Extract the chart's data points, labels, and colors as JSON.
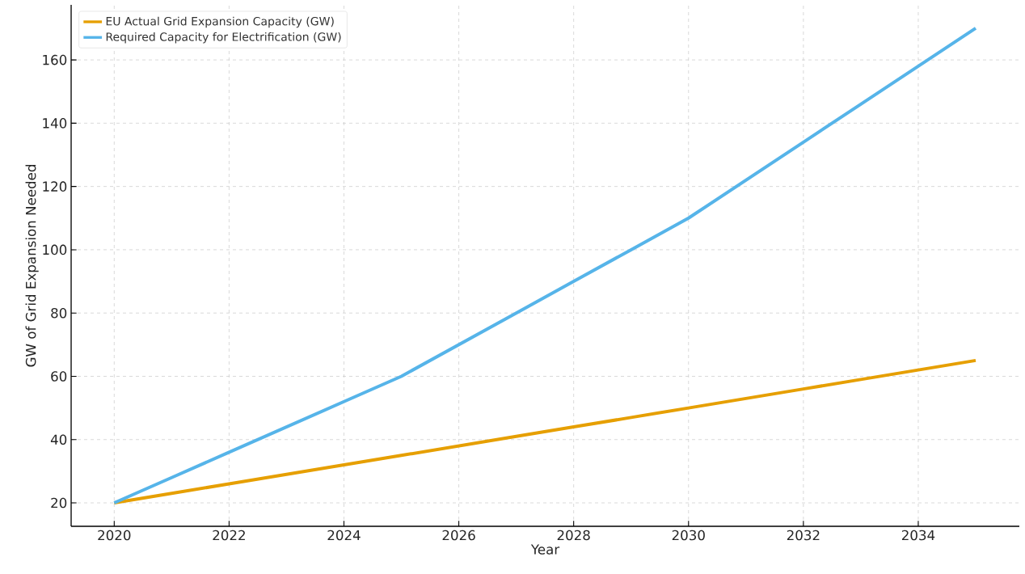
{
  "chart_data": {
    "type": "line",
    "xlabel": "Year",
    "ylabel": "GW of Grid Expansion Needed",
    "x": [
      2020,
      2021,
      2022,
      2023,
      2024,
      2025,
      2026,
      2027,
      2028,
      2029,
      2030,
      2031,
      2032,
      2033,
      2034,
      2035
    ],
    "series": [
      {
        "name": "EU Actual Grid Expansion Capacity (GW)",
        "color": "#e69f00",
        "values": [
          20,
          23,
          26,
          29,
          32,
          35,
          38,
          41,
          44,
          47,
          50,
          53,
          56,
          59,
          62,
          65
        ]
      },
      {
        "name": "Required Capacity for Electrification (GW)",
        "color": "#56b4e9",
        "values": [
          20,
          28,
          36,
          44,
          52,
          60,
          70,
          80,
          90,
          100,
          110,
          122,
          134,
          146,
          158,
          170
        ]
      }
    ],
    "xlim": [
      2019.25,
      2035.76
    ],
    "ylim": [
      12.6,
      177.4
    ],
    "xticks": [
      2020,
      2022,
      2024,
      2026,
      2028,
      2030,
      2032,
      2034
    ],
    "yticks": [
      20,
      40,
      60,
      80,
      100,
      120,
      140,
      160
    ],
    "grid": true,
    "legend": "top left",
    "line_style": "solid"
  }
}
